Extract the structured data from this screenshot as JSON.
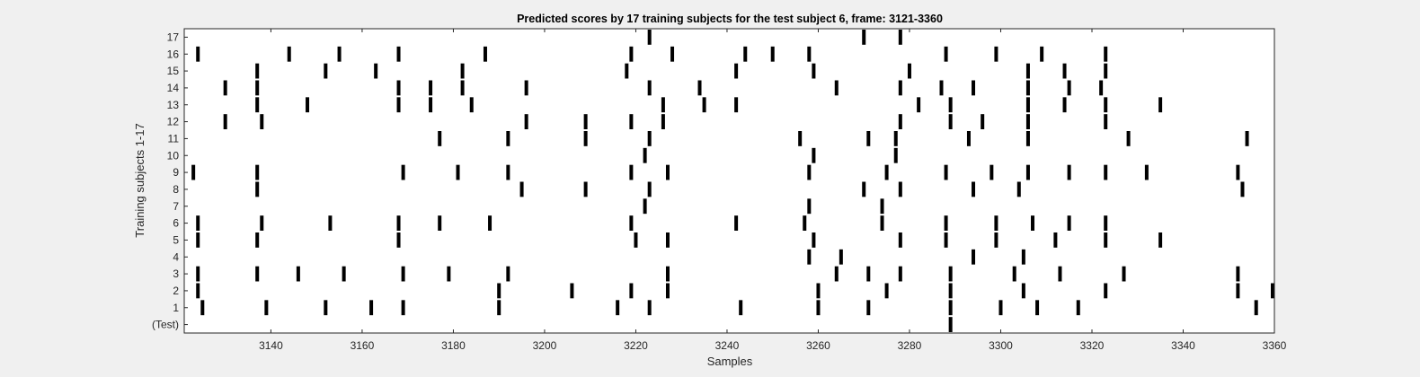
{
  "chart_data": {
    "type": "raster",
    "title": "Predicted scores by 17 training subjects for the test subject 6, frame: 3121-3360",
    "xlabel": "Samples",
    "ylabel": "Training subjects 1-17",
    "xlim": [
      3121,
      3360
    ],
    "xticks": [
      3140,
      3160,
      3180,
      3200,
      3220,
      3240,
      3260,
      3280,
      3300,
      3320,
      3340,
      3360
    ],
    "rows": [
      {
        "label": "(Test)",
        "events": [
          3289
        ]
      },
      {
        "label": "1",
        "events": [
          3125,
          3139,
          3152,
          3162,
          3169,
          3190,
          3216,
          3223,
          3243,
          3260,
          3271,
          3289,
          3300,
          3308,
          3317,
          3356
        ]
      },
      {
        "label": "2",
        "events": [
          3124,
          3190,
          3206,
          3219,
          3227,
          3260,
          3275,
          3289,
          3305,
          3323,
          3352,
          3360
        ]
      },
      {
        "label": "3",
        "events": [
          3124,
          3137,
          3146,
          3156,
          3169,
          3179,
          3192,
          3227,
          3264,
          3271,
          3278,
          3289,
          3303,
          3313,
          3327,
          3352
        ]
      },
      {
        "label": "4",
        "events": [
          3258,
          3265,
          3294,
          3305
        ]
      },
      {
        "label": "5",
        "events": [
          3124,
          3137,
          3168,
          3220,
          3227,
          3259,
          3278,
          3288,
          3299,
          3312,
          3323,
          3335
        ]
      },
      {
        "label": "6",
        "events": [
          3124,
          3138,
          3153,
          3168,
          3177,
          3188,
          3219,
          3242,
          3257,
          3274,
          3288,
          3299,
          3307,
          3315,
          3323
        ]
      },
      {
        "label": "7",
        "events": [
          3222,
          3258,
          3274
        ]
      },
      {
        "label": "8",
        "events": [
          3137,
          3195,
          3209,
          3223,
          3270,
          3278,
          3294,
          3304,
          3353
        ]
      },
      {
        "label": "9",
        "events": [
          3123,
          3137,
          3169,
          3181,
          3192,
          3219,
          3227,
          3258,
          3275,
          3288,
          3298,
          3306,
          3315,
          3323,
          3332,
          3352
        ]
      },
      {
        "label": "10",
        "events": [
          3222,
          3259,
          3277
        ]
      },
      {
        "label": "11",
        "events": [
          3177,
          3192,
          3209,
          3223,
          3256,
          3271,
          3277,
          3293,
          3306,
          3328,
          3354
        ]
      },
      {
        "label": "12",
        "events": [
          3130,
          3138,
          3196,
          3209,
          3219,
          3226,
          3278,
          3289,
          3296,
          3306,
          3323
        ]
      },
      {
        "label": "13",
        "events": [
          3137,
          3148,
          3168,
          3175,
          3184,
          3226,
          3235,
          3242,
          3282,
          3289,
          3306,
          3314,
          3323,
          3335
        ]
      },
      {
        "label": "14",
        "events": [
          3130,
          3137,
          3168,
          3175,
          3182,
          3196,
          3223,
          3234,
          3264,
          3278,
          3287,
          3294,
          3306,
          3315,
          3322
        ]
      },
      {
        "label": "15",
        "events": [
          3137,
          3152,
          3163,
          3182,
          3218,
          3242,
          3259,
          3280,
          3306,
          3314,
          3323
        ]
      },
      {
        "label": "16",
        "events": [
          3124,
          3144,
          3155,
          3168,
          3187,
          3219,
          3228,
          3244,
          3250,
          3258,
          3288,
          3299,
          3309,
          3323
        ]
      },
      {
        "label": "17",
        "events": [
          3223,
          3270,
          3278
        ]
      }
    ]
  }
}
